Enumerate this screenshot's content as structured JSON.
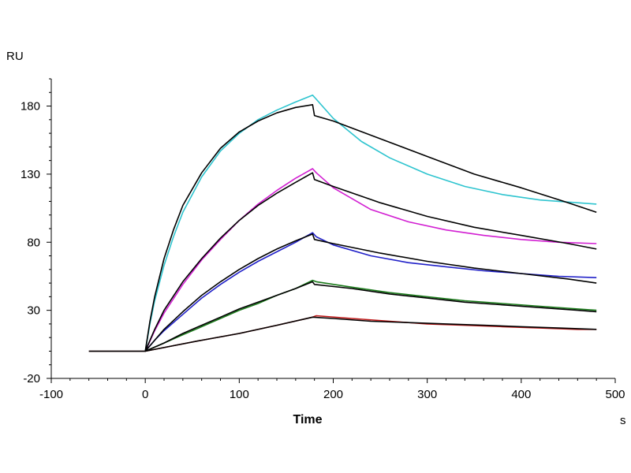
{
  "chart_data": {
    "type": "line",
    "ylabel": "RU",
    "xlabel": "Time",
    "xunit": "s",
    "xlim": [
      -100,
      500
    ],
    "ylim": [
      -20,
      200
    ],
    "x_ticks": [
      -100,
      0,
      100,
      200,
      300,
      400,
      500
    ],
    "y_ticks": [
      -20,
      30,
      80,
      130,
      180
    ],
    "grid": false,
    "legend": "none",
    "association_end": 180,
    "series": [
      {
        "color": "#2ec4cf",
        "measured": [
          [
            -60,
            0
          ],
          [
            0,
            0
          ],
          [
            5,
            20
          ],
          [
            10,
            37
          ],
          [
            20,
            63
          ],
          [
            30,
            84
          ],
          [
            40,
            102
          ],
          [
            60,
            128
          ],
          [
            80,
            147
          ],
          [
            100,
            160
          ],
          [
            120,
            170
          ],
          [
            140,
            177
          ],
          [
            160,
            183
          ],
          [
            178,
            188
          ],
          [
            182,
            185
          ],
          [
            200,
            171
          ],
          [
            230,
            154
          ],
          [
            260,
            142
          ],
          [
            300,
            130
          ],
          [
            340,
            121
          ],
          [
            380,
            115
          ],
          [
            420,
            111
          ],
          [
            460,
            109
          ],
          [
            480,
            108
          ]
        ],
        "fitted": [
          [
            -60,
            0
          ],
          [
            0,
            0
          ],
          [
            5,
            22
          ],
          [
            10,
            40
          ],
          [
            20,
            68
          ],
          [
            30,
            89
          ],
          [
            40,
            107
          ],
          [
            60,
            131
          ],
          [
            80,
            149
          ],
          [
            100,
            161
          ],
          [
            120,
            169
          ],
          [
            140,
            175
          ],
          [
            160,
            179
          ],
          [
            178,
            181
          ],
          [
            180,
            173
          ],
          [
            200,
            169
          ],
          [
            250,
            156
          ],
          [
            300,
            143
          ],
          [
            350,
            130
          ],
          [
            400,
            120
          ],
          [
            450,
            109
          ],
          [
            480,
            102
          ]
        ]
      },
      {
        "color": "#d21fd2",
        "measured": [
          [
            0,
            0
          ],
          [
            10,
            15
          ],
          [
            20,
            28
          ],
          [
            40,
            49
          ],
          [
            60,
            67
          ],
          [
            80,
            82
          ],
          [
            100,
            96
          ],
          [
            120,
            108
          ],
          [
            140,
            118
          ],
          [
            160,
            127
          ],
          [
            178,
            134
          ],
          [
            182,
            131
          ],
          [
            200,
            120
          ],
          [
            240,
            104
          ],
          [
            280,
            95
          ],
          [
            320,
            89
          ],
          [
            360,
            85
          ],
          [
            400,
            82
          ],
          [
            440,
            80
          ],
          [
            480,
            79
          ]
        ],
        "fitted": [
          [
            0,
            0
          ],
          [
            10,
            16
          ],
          [
            20,
            30
          ],
          [
            40,
            51
          ],
          [
            60,
            68
          ],
          [
            80,
            83
          ],
          [
            100,
            96
          ],
          [
            120,
            107
          ],
          [
            140,
            116
          ],
          [
            160,
            124
          ],
          [
            178,
            131
          ],
          [
            180,
            126
          ],
          [
            200,
            121
          ],
          [
            250,
            109
          ],
          [
            300,
            99
          ],
          [
            350,
            91
          ],
          [
            400,
            85
          ],
          [
            450,
            79
          ],
          [
            480,
            75
          ]
        ]
      },
      {
        "color": "#2020c8",
        "measured": [
          [
            0,
            0
          ],
          [
            10,
            8
          ],
          [
            20,
            15
          ],
          [
            40,
            27
          ],
          [
            60,
            39
          ],
          [
            80,
            49
          ],
          [
            100,
            58
          ],
          [
            120,
            66
          ],
          [
            140,
            73
          ],
          [
            160,
            80
          ],
          [
            178,
            87
          ],
          [
            182,
            84
          ],
          [
            200,
            78
          ],
          [
            240,
            70
          ],
          [
            280,
            65
          ],
          [
            320,
            62
          ],
          [
            360,
            59
          ],
          [
            400,
            57
          ],
          [
            440,
            55
          ],
          [
            480,
            54
          ]
        ],
        "fitted": [
          [
            0,
            0
          ],
          [
            10,
            8
          ],
          [
            20,
            16
          ],
          [
            40,
            29
          ],
          [
            60,
            41
          ],
          [
            80,
            51
          ],
          [
            100,
            60
          ],
          [
            120,
            68
          ],
          [
            140,
            75
          ],
          [
            160,
            81
          ],
          [
            178,
            86
          ],
          [
            180,
            82
          ],
          [
            200,
            79
          ],
          [
            250,
            72
          ],
          [
            300,
            66
          ],
          [
            350,
            61
          ],
          [
            400,
            57
          ],
          [
            450,
            53
          ],
          [
            480,
            50
          ]
        ]
      },
      {
        "color": "#1a7a1a",
        "measured": [
          [
            0,
            0
          ],
          [
            20,
            6
          ],
          [
            40,
            12
          ],
          [
            60,
            18
          ],
          [
            80,
            24
          ],
          [
            100,
            30
          ],
          [
            120,
            35
          ],
          [
            140,
            41
          ],
          [
            160,
            46
          ],
          [
            178,
            52
          ],
          [
            182,
            51
          ],
          [
            220,
            47
          ],
          [
            260,
            43
          ],
          [
            300,
            40
          ],
          [
            340,
            37
          ],
          [
            380,
            35
          ],
          [
            420,
            33
          ],
          [
            460,
            31
          ],
          [
            480,
            30
          ]
        ],
        "fitted": [
          [
            0,
            0
          ],
          [
            20,
            6
          ],
          [
            40,
            13
          ],
          [
            60,
            19
          ],
          [
            80,
            25
          ],
          [
            100,
            31
          ],
          [
            120,
            36
          ],
          [
            140,
            41
          ],
          [
            160,
            46
          ],
          [
            178,
            51
          ],
          [
            180,
            49
          ],
          [
            220,
            46
          ],
          [
            260,
            42
          ],
          [
            300,
            39
          ],
          [
            340,
            36
          ],
          [
            380,
            34
          ],
          [
            420,
            32
          ],
          [
            460,
            30
          ],
          [
            480,
            29
          ]
        ]
      },
      {
        "color": "#c01818",
        "measured": [
          [
            -60,
            0
          ],
          [
            -40,
            0
          ],
          [
            0,
            0
          ],
          [
            30,
            4
          ],
          [
            60,
            8
          ],
          [
            100,
            13
          ],
          [
            140,
            19
          ],
          [
            178,
            25
          ],
          [
            182,
            26
          ],
          [
            220,
            24
          ],
          [
            260,
            22
          ],
          [
            300,
            20
          ],
          [
            340,
            19
          ],
          [
            380,
            18
          ],
          [
            420,
            17
          ],
          [
            460,
            16
          ],
          [
            480,
            16
          ]
        ],
        "fitted": [
          [
            0,
            0
          ],
          [
            30,
            4
          ],
          [
            60,
            8
          ],
          [
            100,
            13
          ],
          [
            140,
            19
          ],
          [
            178,
            25
          ],
          [
            200,
            24
          ],
          [
            240,
            22
          ],
          [
            280,
            21
          ],
          [
            320,
            20
          ],
          [
            360,
            19
          ],
          [
            400,
            18
          ],
          [
            440,
            17
          ],
          [
            480,
            16
          ]
        ]
      }
    ]
  }
}
